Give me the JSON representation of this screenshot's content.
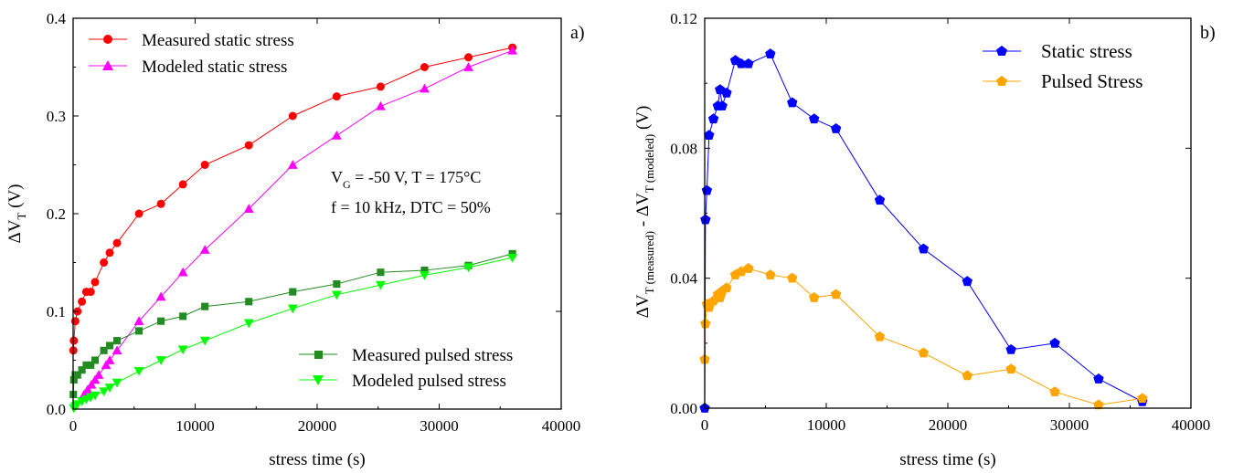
{
  "chart_data": [
    {
      "type": "line",
      "panel_label": "a)",
      "xlabel": "stress time (s)",
      "ylabel": {
        "base": "ΔV",
        "sub": "T",
        "tail": " (V)"
      },
      "xlim": [
        0,
        40000
      ],
      "ylim": [
        0,
        0.4
      ],
      "xticks": [
        0,
        10000,
        20000,
        30000,
        40000
      ],
      "xtick_labels": [
        "0",
        "10000",
        "20000",
        "30000",
        "40000"
      ],
      "yticks": [
        0,
        0.1,
        0.2,
        0.3,
        0.4
      ],
      "ytick_labels": [
        "0.0",
        "0.1",
        "0.2",
        "0.3",
        "0.4"
      ],
      "annotation": {
        "line1": {
          "base": "V",
          "sub": "G",
          "tail": " = -50 V, T = 175°C"
        },
        "line2": "f = 10 kHz, DTC = 50%"
      },
      "legend_upper": "top-left",
      "legend_lower": "bottom-right",
      "series": [
        {
          "name": "Measured static stress",
          "color": "#ff0000",
          "marker": "circle",
          "x": [
            18,
            60,
            180,
            360,
            720,
            1080,
            1440,
            1800,
            2520,
            3000,
            3600,
            5400,
            7200,
            9000,
            10800,
            14400,
            18000,
            21600,
            25200,
            28800,
            32400,
            36000
          ],
          "y": [
            0.06,
            0.07,
            0.09,
            0.1,
            0.11,
            0.12,
            0.12,
            0.13,
            0.15,
            0.16,
            0.17,
            0.2,
            0.21,
            0.23,
            0.25,
            0.27,
            0.3,
            0.32,
            0.33,
            0.35,
            0.36,
            0.37
          ]
        },
        {
          "name": "Modeled static stress",
          "color": "#ff00ff",
          "marker": "triangle-up",
          "x": [
            900,
            1200,
            1500,
            1800,
            2100,
            2700,
            3000,
            3600,
            5400,
            7200,
            9000,
            10800,
            14400,
            18000,
            21600,
            25200,
            28800,
            32400,
            36000
          ],
          "y": [
            0.015,
            0.02,
            0.025,
            0.03,
            0.035,
            0.045,
            0.05,
            0.06,
            0.09,
            0.115,
            0.14,
            0.163,
            0.205,
            0.25,
            0.28,
            0.31,
            0.328,
            0.35,
            0.367
          ]
        },
        {
          "name": "Measured pulsed stress",
          "color": "#228b22",
          "marker": "square",
          "x": [
            18,
            60,
            180,
            360,
            720,
            1080,
            1440,
            1800,
            2520,
            3000,
            3600,
            5400,
            7200,
            9000,
            10800,
            14400,
            18000,
            21600,
            25200,
            28800,
            32400,
            36000
          ],
          "y": [
            0.015,
            0.03,
            0.035,
            0.035,
            0.04,
            0.045,
            0.045,
            0.05,
            0.06,
            0.065,
            0.07,
            0.08,
            0.09,
            0.095,
            0.105,
            0.11,
            0.12,
            0.128,
            0.14,
            0.142,
            0.147,
            0.159
          ]
        },
        {
          "name": "Modeled pulsed stress",
          "color": "#00ff00",
          "marker": "triangle-down",
          "x": [
            60,
            180,
            360,
            720,
            1080,
            1440,
            1800,
            2520,
            3000,
            3600,
            5400,
            7200,
            9000,
            10800,
            14400,
            18000,
            21600,
            25200,
            28800,
            32400,
            36000
          ],
          "y": [
            0.001,
            0.003,
            0.005,
            0.008,
            0.01,
            0.012,
            0.014,
            0.018,
            0.022,
            0.027,
            0.039,
            0.05,
            0.061,
            0.07,
            0.088,
            0.103,
            0.117,
            0.127,
            0.137,
            0.145,
            0.155
          ]
        }
      ]
    },
    {
      "type": "line",
      "panel_label": "b)",
      "xlabel": "stress time (s)",
      "ylabel": {
        "p1": "ΔV",
        "s1": "T (measured)",
        "p2": " - ΔV",
        "s2": "T (modeled)",
        "p3": "  (V)"
      },
      "xlim": [
        0,
        40000
      ],
      "ylim": [
        0,
        0.12
      ],
      "xticks": [
        0,
        10000,
        20000,
        30000,
        40000
      ],
      "xtick_labels": [
        "0",
        "10000",
        "20000",
        "30000",
        "40000"
      ],
      "yticks": [
        0,
        0.04,
        0.08,
        0.12
      ],
      "ytick_labels": [
        "0.00",
        "0.04",
        "0.08",
        "0.12"
      ],
      "legend": "top-right",
      "series": [
        {
          "name": "Static stress",
          "color": "#0000ff",
          "marker": "pentagon",
          "x": [
            0,
            60,
            180,
            360,
            720,
            1080,
            1260,
            1440,
            1800,
            2520,
            3000,
            3600,
            5400,
            7200,
            9000,
            10800,
            14400,
            18000,
            21600,
            25200,
            28800,
            32400,
            36000
          ],
          "y": [
            0.0,
            0.058,
            0.067,
            0.084,
            0.089,
            0.093,
            0.098,
            0.093,
            0.097,
            0.107,
            0.106,
            0.106,
            0.109,
            0.094,
            0.089,
            0.086,
            0.064,
            0.049,
            0.039,
            0.018,
            0.02,
            0.009,
            0.002
          ]
        },
        {
          "name": "Pulsed Stress",
          "color": "#ffa500",
          "marker": "pentagon",
          "x": [
            0,
            60,
            180,
            360,
            720,
            1080,
            1260,
            1440,
            1800,
            2520,
            3000,
            3600,
            5400,
            7200,
            9000,
            10800,
            14400,
            18000,
            21600,
            25200,
            28800,
            32400,
            36000
          ],
          "y": [
            0.015,
            0.026,
            0.032,
            0.031,
            0.033,
            0.035,
            0.034,
            0.036,
            0.037,
            0.041,
            0.042,
            0.043,
            0.041,
            0.04,
            0.034,
            0.035,
            0.022,
            0.017,
            0.01,
            0.012,
            0.005,
            0.001,
            0.003
          ]
        }
      ]
    }
  ]
}
